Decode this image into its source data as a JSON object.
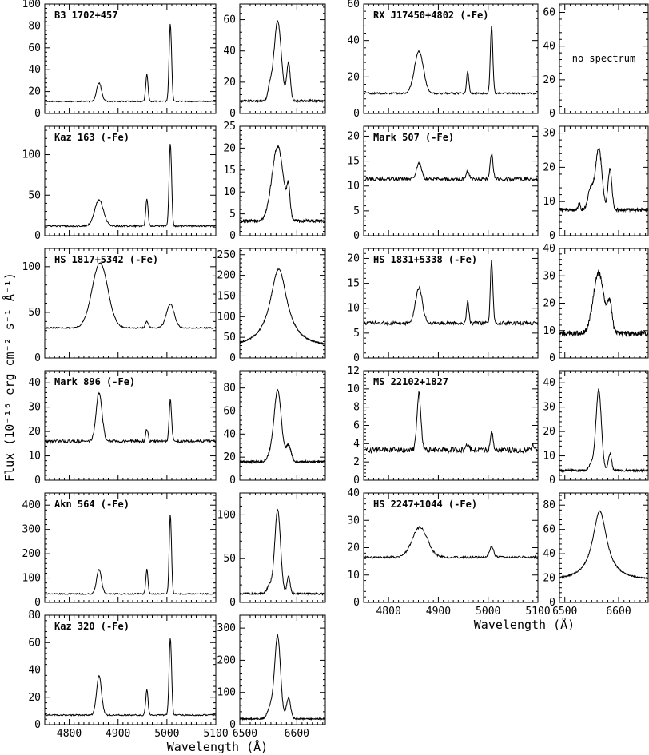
{
  "figure": {
    "ylabel": "Flux (10⁻¹⁶ erg cm⁻² s⁻¹ Å⁻¹)",
    "xlabel": "Wavelength (Å)",
    "no_spectrum": "no spectrum"
  },
  "chart_data": [
    {
      "name": "B3 1702+457",
      "type": "line",
      "col": 0,
      "row": 0,
      "hb": {
        "ylim": [
          0,
          100
        ],
        "yticks": [
          0,
          20,
          40,
          60,
          80,
          100
        ],
        "base": 11,
        "noise": 0.5,
        "lines": [
          {
            "x": 4861,
            "a": 17,
            "w": 5
          },
          {
            "x": 4959,
            "a": 25,
            "w": 2.3
          },
          {
            "x": 5007,
            "a": 71,
            "w": 2.5
          }
        ]
      },
      "ha": {
        "ylim": [
          0,
          70
        ],
        "yticks": [
          0,
          20,
          40,
          60
        ],
        "base": 8,
        "noise": 0.6,
        "lines": [
          {
            "x": 6563,
            "a": 51,
            "w": 7
          },
          {
            "x": 6548,
            "a": 8,
            "w": 4
          },
          {
            "x": 6584,
            "a": 24,
            "w": 3.5
          }
        ]
      }
    },
    {
      "name": "Kaz 163 (-Fe)",
      "type": "line",
      "col": 0,
      "row": 1,
      "hb": {
        "ylim": [
          0,
          135
        ],
        "yticks": [
          0,
          50,
          100
        ],
        "base": 12,
        "noise": 1.0,
        "lines": [
          {
            "x": 4861,
            "a": 32,
            "w": 9
          },
          {
            "x": 4959,
            "a": 34,
            "w": 2.3
          },
          {
            "x": 5007,
            "a": 102,
            "w": 2.5
          }
        ]
      },
      "ha": {
        "ylim": [
          0,
          25
        ],
        "yticks": [
          0,
          5,
          10,
          15,
          20,
          25
        ],
        "base": 3.4,
        "noise": 0.35,
        "lines": [
          {
            "x": 6563,
            "a": 17,
            "w": 11
          },
          {
            "x": 6584,
            "a": 6,
            "w": 3
          }
        ]
      }
    },
    {
      "name": "HS 1817+5342 (-Fe)",
      "type": "line",
      "col": 0,
      "row": 2,
      "hb": {
        "ylim": [
          0,
          120
        ],
        "yticks": [
          0,
          50,
          100
        ],
        "base": 33,
        "noise": 0.7,
        "lines": [
          {
            "x": 4863,
            "a": 71,
            "w": 16
          },
          {
            "x": 4959,
            "a": 7,
            "w": 3
          },
          {
            "x": 5007,
            "a": 26,
            "w": 8
          }
        ]
      },
      "ha": {
        "ylim": [
          0,
          265
        ],
        "yticks": [
          0,
          50,
          100,
          150,
          200,
          250
        ],
        "base": 25,
        "noise": 1.5,
        "lines": [
          {
            "x": 6565,
            "a": 190,
            "w": 20,
            "lor": true
          }
        ]
      }
    },
    {
      "name": "Mark 896 (-Fe)",
      "type": "line",
      "col": 0,
      "row": 3,
      "hb": {
        "ylim": [
          0,
          45
        ],
        "yticks": [
          0,
          10,
          20,
          30,
          40
        ],
        "base": 16,
        "noise": 0.6,
        "lines": [
          {
            "x": 4861,
            "a": 20,
            "w": 6
          },
          {
            "x": 4959,
            "a": 5,
            "w": 2.3
          },
          {
            "x": 5007,
            "a": 17,
            "w": 2.5
          }
        ]
      },
      "ha": {
        "ylim": [
          0,
          95
        ],
        "yticks": [
          0,
          20,
          40,
          60,
          80
        ],
        "base": 16,
        "noise": 0.9,
        "lines": [
          {
            "x": 6563,
            "a": 62,
            "w": 7
          },
          {
            "x": 6548,
            "a": 5,
            "w": 5
          },
          {
            "x": 6584,
            "a": 14,
            "w": 5
          }
        ]
      }
    },
    {
      "name": "Akn 564 (-Fe)",
      "type": "line",
      "col": 0,
      "row": 4,
      "hb": {
        "ylim": [
          0,
          450
        ],
        "yticks": [
          0,
          100,
          200,
          300,
          400
        ],
        "base": 35,
        "noise": 2.5,
        "lines": [
          {
            "x": 4861,
            "a": 100,
            "w": 5
          },
          {
            "x": 4959,
            "a": 102,
            "w": 2.2
          },
          {
            "x": 5007,
            "a": 330,
            "w": 2.3
          }
        ]
      },
      "ha": {
        "ylim": [
          0,
          125
        ],
        "yticks": [
          0,
          50,
          100
        ],
        "base": 10,
        "noise": 1.0,
        "lines": [
          {
            "x": 6563,
            "a": 96,
            "w": 5.5
          },
          {
            "x": 6548,
            "a": 10,
            "w": 5
          },
          {
            "x": 6584,
            "a": 20,
            "w": 3
          }
        ]
      }
    },
    {
      "name": "Kaz 320 (-Fe)",
      "type": "line",
      "col": 0,
      "row": 5,
      "hb": {
        "ylim": [
          0,
          80
        ],
        "yticks": [
          0,
          20,
          40,
          60,
          80
        ],
        "base": 7,
        "noise": 0.5,
        "lines": [
          {
            "x": 4861,
            "a": 29,
            "w": 5
          },
          {
            "x": 4959,
            "a": 19,
            "w": 2.3
          },
          {
            "x": 5007,
            "a": 57,
            "w": 2.5
          }
        ]
      },
      "ha": {
        "ylim": [
          0,
          340
        ],
        "yticks": [
          0,
          100,
          200,
          300
        ],
        "base": 18,
        "noise": 2,
        "lines": [
          {
            "x": 6563,
            "a": 255,
            "w": 5.5
          },
          {
            "x": 6550,
            "a": 40,
            "w": 6
          },
          {
            "x": 6584,
            "a": 65,
            "w": 4
          }
        ]
      }
    },
    {
      "name": "RX J17450+4802 (-Fe)",
      "type": "line",
      "col": 1,
      "row": 0,
      "hb": {
        "ylim": [
          0,
          60
        ],
        "yticks": [
          0,
          20,
          40,
          60
        ],
        "base": 11,
        "noise": 0.5,
        "lines": [
          {
            "x": 4861,
            "a": 23,
            "w": 9
          },
          {
            "x": 4959,
            "a": 12,
            "w": 2.3
          },
          {
            "x": 5007,
            "a": 37,
            "w": 2.5
          }
        ]
      },
      "ha": {
        "ylim": [
          0,
          65
        ],
        "yticks": [
          0,
          20,
          40,
          60
        ],
        "nodata": true
      }
    },
    {
      "name": "Mark 507 (-Fe)",
      "type": "line",
      "col": 1,
      "row": 1,
      "hb": {
        "ylim": [
          0,
          22
        ],
        "yticks": [
          0,
          5,
          10,
          15,
          20
        ],
        "base": 11.4,
        "noise": 0.35,
        "lines": [
          {
            "x": 4861,
            "a": 3.3,
            "w": 5
          },
          {
            "x": 4959,
            "a": 1.5,
            "w": 3
          },
          {
            "x": 5007,
            "a": 5,
            "w": 3
          }
        ]
      },
      "ha": {
        "ylim": [
          0,
          32
        ],
        "yticks": [
          0,
          10,
          20,
          30
        ],
        "base": 7.6,
        "noise": 0.5,
        "lines": [
          {
            "x": 6563,
            "a": 18,
            "w": 6
          },
          {
            "x": 6548,
            "a": 6,
            "w": 5
          },
          {
            "x": 6584,
            "a": 12,
            "w": 3.5
          },
          {
            "x": 6527,
            "a": 2,
            "w": 2
          }
        ]
      }
    },
    {
      "name": "HS 1831+5338 (-Fe)",
      "type": "line",
      "col": 1,
      "row": 2,
      "hb": {
        "ylim": [
          0,
          22
        ],
        "yticks": [
          0,
          5,
          10,
          15,
          20
        ],
        "base": 7,
        "noise": 0.35,
        "lines": [
          {
            "x": 4861,
            "a": 7,
            "w": 7
          },
          {
            "x": 4959,
            "a": 4.5,
            "w": 2.3
          },
          {
            "x": 5007,
            "a": 12.5,
            "w": 2.5
          }
        ]
      },
      "ha": {
        "ylim": [
          0,
          40
        ],
        "yticks": [
          0,
          10,
          20,
          30,
          40
        ],
        "base": 9,
        "noise": 0.9,
        "lines": [
          {
            "x": 6563,
            "a": 22,
            "w": 10
          },
          {
            "x": 6584,
            "a": 10,
            "w": 4
          }
        ]
      }
    },
    {
      "name": "MS 22102+1827",
      "type": "line",
      "col": 1,
      "row": 3,
      "hb": {
        "ylim": [
          0,
          12
        ],
        "yticks": [
          0,
          2,
          4,
          6,
          8,
          10,
          12
        ],
        "base": 3.3,
        "noise": 0.3,
        "lines": [
          {
            "x": 4861,
            "a": 6.2,
            "w": 4
          },
          {
            "x": 4959,
            "a": 0.6,
            "w": 3
          },
          {
            "x": 5007,
            "a": 2.1,
            "w": 2.5
          },
          {
            "x": 5090,
            "a": 0.6,
            "w": 2
          }
        ]
      },
      "ha": {
        "ylim": [
          0,
          45
        ],
        "yticks": [
          0,
          10,
          20,
          30,
          40
        ],
        "base": 4,
        "noise": 0.4,
        "lines": [
          {
            "x": 6563,
            "a": 33,
            "w": 5
          },
          {
            "x": 6550,
            "a": 3,
            "w": 5
          },
          {
            "x": 6584,
            "a": 7,
            "w": 3
          }
        ]
      }
    },
    {
      "name": "HS 2247+1044 (-Fe)",
      "type": "line",
      "col": 1,
      "row": 4,
      "hb": {
        "ylim": [
          0,
          40
        ],
        "yticks": [
          0,
          10,
          20,
          30,
          40
        ],
        "base": 16.5,
        "noise": 0.4,
        "lines": [
          {
            "x": 4863,
            "a": 11,
            "w": 15
          },
          {
            "x": 5007,
            "a": 4,
            "w": 4
          }
        ]
      },
      "ha": {
        "ylim": [
          0,
          90
        ],
        "yticks": [
          0,
          20,
          40,
          60,
          80
        ],
        "base": 18,
        "noise": 0.5,
        "lines": [
          {
            "x": 6565,
            "a": 57,
            "w": 16,
            "lor": true
          }
        ]
      }
    }
  ],
  "axes": {
    "hb_xlim": [
      4750,
      5100
    ],
    "hb_xticks": [
      4800,
      4900,
      5000,
      5100
    ],
    "ha_xlim": [
      6490,
      6655
    ],
    "ha_xticks": [
      6500,
      6600
    ]
  }
}
